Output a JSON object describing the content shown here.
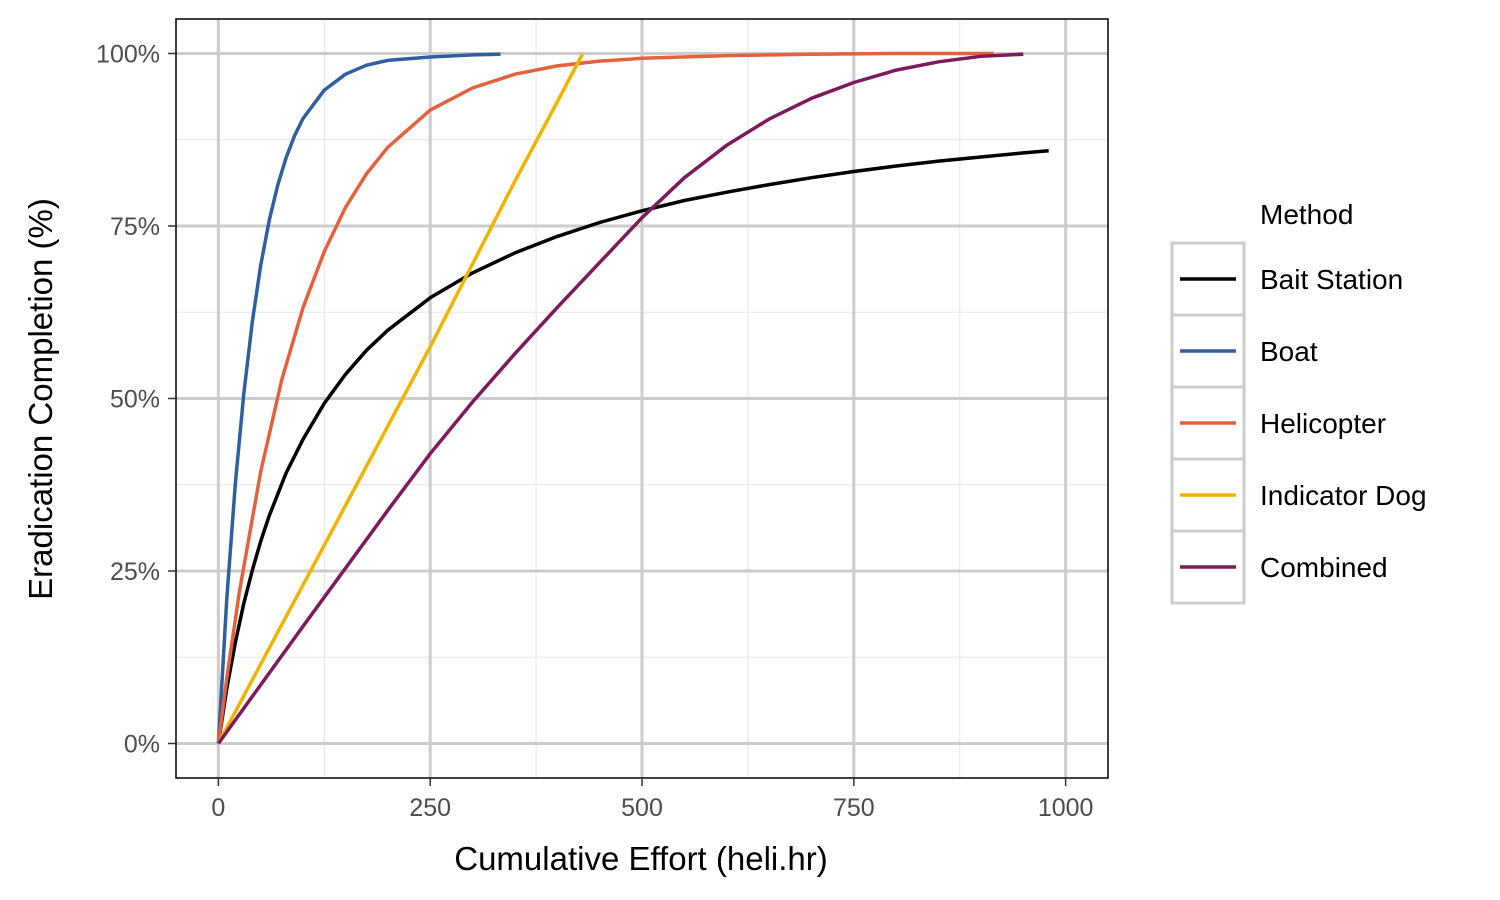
{
  "chart_data": {
    "type": "line",
    "xlabel": "Cumulative Effort (heli.hr)",
    "ylabel": "Eradication Completion (%)",
    "xlim": [
      -50,
      1050
    ],
    "ylim": [
      -0.05,
      1.05
    ],
    "x_ticks": [
      0,
      250,
      500,
      750,
      1000
    ],
    "x_tick_labels": [
      "0",
      "250",
      "500",
      "750",
      "1000"
    ],
    "x_minor_ticks": [
      125,
      375,
      625,
      875
    ],
    "y_ticks": [
      0,
      0.25,
      0.5,
      0.75,
      1.0
    ],
    "y_tick_labels": [
      "0%",
      "25%",
      "50%",
      "75%",
      "100%"
    ],
    "y_minor_ticks": [
      0.125,
      0.375,
      0.625,
      0.875
    ],
    "grid": true,
    "legend_position": "right",
    "legend_title": "Method",
    "series": [
      {
        "name": "Bait Station",
        "color": "#000000",
        "x": [
          0,
          10,
          20,
          30,
          40,
          50,
          60,
          80,
          100,
          125,
          150,
          175,
          200,
          250,
          300,
          350,
          400,
          450,
          500,
          550,
          600,
          650,
          700,
          750,
          800,
          850,
          900,
          950,
          980
        ],
        "y": [
          0,
          0.08,
          0.146,
          0.203,
          0.251,
          0.293,
          0.33,
          0.392,
          0.441,
          0.493,
          0.535,
          0.57,
          0.599,
          0.646,
          0.682,
          0.711,
          0.735,
          0.755,
          0.772,
          0.787,
          0.799,
          0.81,
          0.82,
          0.829,
          0.837,
          0.844,
          0.85,
          0.856,
          0.859
        ]
      },
      {
        "name": "Boat",
        "color": "#2e5f9e",
        "x": [
          0,
          10,
          20,
          30,
          40,
          50,
          60,
          70,
          80,
          90,
          100,
          125,
          150,
          175,
          200,
          250,
          300,
          333
        ],
        "y": [
          0,
          0.21,
          0.376,
          0.507,
          0.611,
          0.693,
          0.758,
          0.809,
          0.849,
          0.881,
          0.906,
          0.947,
          0.97,
          0.983,
          0.99,
          0.995,
          0.998,
          0.999
        ]
      },
      {
        "name": "Helicopter",
        "color": "#e5613d",
        "x": [
          0,
          10,
          25,
          50,
          75,
          100,
          125,
          150,
          175,
          200,
          250,
          300,
          350,
          400,
          450,
          500,
          600,
          700,
          800,
          915
        ],
        "y": [
          0,
          0.095,
          0.221,
          0.394,
          0.528,
          0.632,
          0.713,
          0.777,
          0.826,
          0.864,
          0.918,
          0.95,
          0.97,
          0.982,
          0.989,
          0.993,
          0.997,
          0.999,
          1.0,
          1.0
        ]
      },
      {
        "name": "Indicator Dog",
        "color": "#f0b400",
        "x": [
          0,
          50,
          100,
          150,
          200,
          250,
          300,
          350,
          400,
          430
        ],
        "y": [
          0,
          0.115,
          0.23,
          0.345,
          0.46,
          0.575,
          0.695,
          0.815,
          0.93,
          1.0
        ]
      },
      {
        "name": "Combined",
        "color": "#7d1a5e",
        "x": [
          0,
          50,
          100,
          150,
          200,
          250,
          300,
          350,
          400,
          450,
          500,
          550,
          600,
          650,
          700,
          750,
          800,
          850,
          900,
          950
        ],
        "y": [
          0,
          0.085,
          0.17,
          0.254,
          0.338,
          0.42,
          0.495,
          0.565,
          0.632,
          0.697,
          0.762,
          0.82,
          0.867,
          0.905,
          0.935,
          0.958,
          0.976,
          0.988,
          0.996,
          0.999
        ]
      }
    ]
  }
}
